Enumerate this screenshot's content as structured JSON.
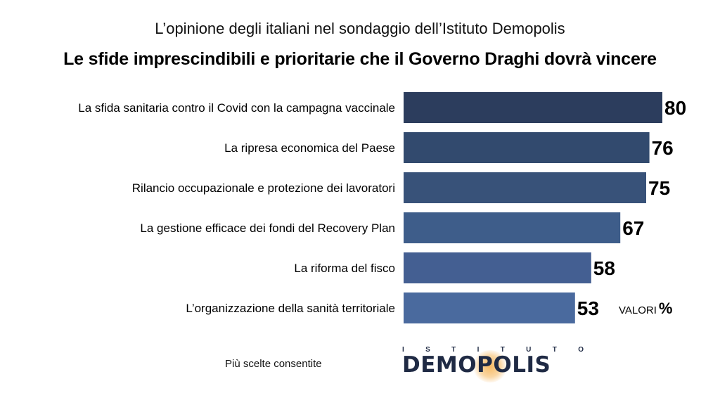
{
  "header": {
    "subtitle": "L’opinione degli italiani nel sondaggio dell’Istituto Demopolis",
    "title": "Le sfide imprescindibili e prioritarie che il Governo Draghi dovrà vincere"
  },
  "chart_data": {
    "type": "bar",
    "orientation": "horizontal",
    "title": "Le sfide imprescindibili e prioritarie che il Governo Draghi dovrà vincere",
    "subtitle": "L’opinione degli italiani nel sondaggio dell’Istituto Demopolis",
    "categories": [
      "La sfida sanitaria contro il Covid con la campagna vaccinale",
      "La ripresa economica del Paese",
      "Rilancio occupazionale e protezione dei lavoratori",
      "La gestione efficace dei fondi del Recovery Plan",
      "La riforma del fisco",
      "L’organizzazione della sanità territoriale"
    ],
    "values": [
      80,
      76,
      75,
      67,
      58,
      53
    ],
    "colors": [
      "#2c3d5d",
      "#324a6e",
      "#385279",
      "#3e5d8a",
      "#445f92",
      "#4a6a9e"
    ],
    "unit_label": "VALORI",
    "unit_symbol": "%",
    "grid": false,
    "legend": "none"
  },
  "footnote": "Più scelte consentite",
  "logo": {
    "top_letters": [
      "I",
      "S",
      "T",
      "I",
      "T",
      "U",
      "T",
      "O"
    ],
    "text_before": "DEM",
    "text_highlight": "O",
    "text_after": "POLIS",
    "color": "#1f2a44",
    "glow_color": "#f6b65a"
  }
}
